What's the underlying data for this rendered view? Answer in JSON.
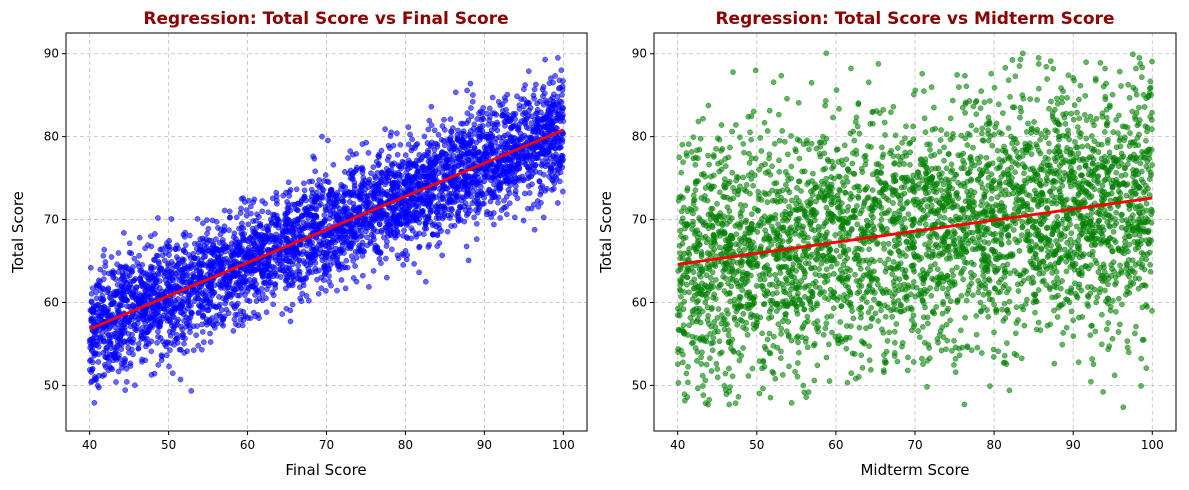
{
  "chart_data": [
    {
      "type": "scatter",
      "title": "Regression: Total Score vs Final Score",
      "xlabel": "Final Score",
      "ylabel": "Total Score",
      "xlim": [
        37,
        103
      ],
      "ylim": [
        44.5,
        92.5
      ],
      "xticks": [
        40,
        50,
        60,
        70,
        80,
        90,
        100
      ],
      "yticks": [
        50,
        60,
        70,
        80,
        90
      ],
      "grid": true,
      "point_color": "#0000ff",
      "line_color": "#ff0000",
      "series": [
        {
          "kind": "points",
          "n_points": 4000,
          "x_range": [
            40,
            100
          ],
          "trend": {
            "slope": 0.4,
            "intercept": 40.8
          },
          "y_spread_sd": 3.4,
          "y_clip": [
            46.5,
            90.2
          ]
        }
      ],
      "regression_line": {
        "x": [
          40,
          100
        ],
        "y": [
          56.8,
          80.8
        ]
      }
    },
    {
      "type": "scatter",
      "title": "Regression: Total Score vs Midterm Score",
      "xlabel": "Midterm Score",
      "ylabel": "Total Score",
      "xlim": [
        37,
        103
      ],
      "ylim": [
        44.5,
        92.5
      ],
      "xticks": [
        40,
        50,
        60,
        70,
        80,
        90,
        100
      ],
      "yticks": [
        50,
        60,
        70,
        80,
        90
      ],
      "grid": true,
      "point_color": "#008000",
      "line_color": "#ff0000",
      "series": [
        {
          "kind": "points",
          "n_points": 3800,
          "x_range": [
            40,
            100
          ],
          "trend": {
            "slope": 0.133,
            "intercept": 59.3
          },
          "y_spread_sd": 7.4,
          "y_clip": [
            46.5,
            90.2
          ]
        }
      ],
      "regression_line": {
        "x": [
          40,
          100
        ],
        "y": [
          64.6,
          72.6
        ]
      }
    }
  ]
}
